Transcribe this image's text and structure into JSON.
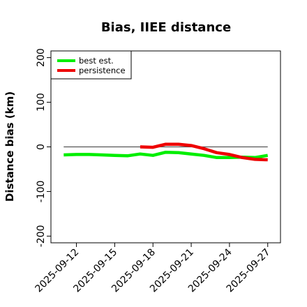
{
  "chart_data": {
    "type": "line",
    "title": "Bias, IIEE distance",
    "xlabel": "",
    "ylabel": "Distance bias (km)",
    "ylim": [
      -215,
      215
    ],
    "xlim": [
      "2025-09-10",
      "2025-09-28"
    ],
    "yticks": [
      -200,
      -100,
      0,
      100,
      200
    ],
    "ytick_labels": [
      "-200",
      "-100",
      "0",
      "100",
      "200"
    ],
    "xticks": [
      "2025-09-12",
      "2025-09-15",
      "2025-09-18",
      "2025-09-21",
      "2025-09-24",
      "2025-09-27"
    ],
    "xtick_labels": [
      "2025-09-12",
      "2025-09-15",
      "2025-09-18",
      "2025-09-21",
      "2025-09-24",
      "2025-09-27"
    ],
    "reference_line": {
      "y": 0,
      "from": "2025-09-11",
      "to": "2025-09-27",
      "color": "#555555"
    },
    "legend_position": "top-left",
    "series": [
      {
        "name": "best est.",
        "color": "#00ee00",
        "x": [
          "2025-09-11",
          "2025-09-12",
          "2025-09-13",
          "2025-09-14",
          "2025-09-15",
          "2025-09-16",
          "2025-09-17",
          "2025-09-18",
          "2025-09-19",
          "2025-09-20",
          "2025-09-21",
          "2025-09-22",
          "2025-09-23",
          "2025-09-24",
          "2025-09-25",
          "2025-09-26",
          "2025-09-27"
        ],
        "values": [
          -18,
          -17,
          -17,
          -18,
          -19,
          -20,
          -16,
          -19,
          -12,
          -13,
          -16,
          -19,
          -24,
          -24,
          -23,
          -24,
          -19
        ]
      },
      {
        "name": "persistence",
        "color": "#ee0000",
        "x": [
          "2025-09-17",
          "2025-09-18",
          "2025-09-19",
          "2025-09-20",
          "2025-09-21",
          "2025-09-22",
          "2025-09-23",
          "2025-09-24",
          "2025-09-25",
          "2025-09-26",
          "2025-09-27"
        ],
        "values": [
          0,
          -1,
          6,
          6,
          3,
          -4,
          -13,
          -17,
          -24,
          -28,
          -29
        ]
      }
    ]
  }
}
